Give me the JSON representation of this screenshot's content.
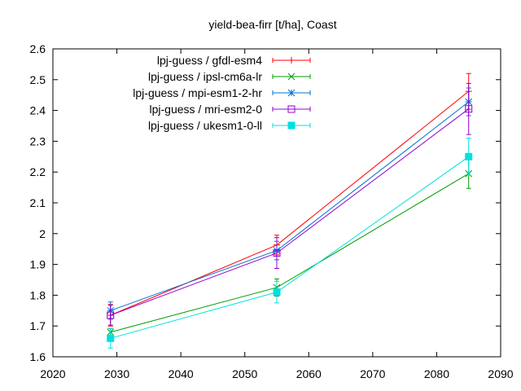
{
  "chart_data": {
    "type": "line",
    "title": "yield-bea-firr [t/ha], Coast",
    "xlabel": "",
    "ylabel": "",
    "xlim": [
      2020,
      2090
    ],
    "ylim": [
      1.6,
      2.6
    ],
    "x_ticks": [
      2020,
      2030,
      2040,
      2050,
      2060,
      2070,
      2080,
      2090
    ],
    "y_ticks": [
      1.6,
      1.7,
      1.8,
      1.9,
      2.0,
      2.1,
      2.2,
      2.3,
      2.4,
      2.5,
      2.6
    ],
    "x_tick_labels": [
      "2020",
      "2030",
      "2040",
      "2050",
      "2060",
      "2070",
      "2080",
      "2090"
    ],
    "y_tick_labels": [
      "1.6",
      "1.7",
      "1.8",
      "1.9",
      "2",
      "2.1",
      "2.2",
      "2.3",
      "2.4",
      "2.5",
      "2.6"
    ],
    "grid": false,
    "legend_position": "top-left",
    "x": [
      2029,
      2055,
      2085
    ],
    "series": [
      {
        "name": "lpj-guess / gfdl-esm4",
        "color": "#ff0000",
        "marker": "plus",
        "values": [
          1.735,
          1.963,
          2.462
        ],
        "err": [
          0.035,
          0.032,
          0.058
        ]
      },
      {
        "name": "lpj-guess / ipsl-cm6a-lr",
        "color": "#009e00",
        "marker": "cross",
        "values": [
          1.68,
          1.825,
          2.195
        ],
        "err": [
          0.012,
          0.028,
          0.048
        ]
      },
      {
        "name": "lpj-guess / mpi-esm1-2-hr",
        "color": "#0072d2",
        "marker": "star",
        "values": [
          1.75,
          1.945,
          2.428
        ],
        "err": [
          0.028,
          0.03,
          0.045
        ]
      },
      {
        "name": "lpj-guess / mri-esm2-0",
        "color": "#9400d3",
        "marker": "open-square",
        "values": [
          1.735,
          1.937,
          2.405
        ],
        "err": [
          0.032,
          0.05,
          0.083
        ]
      },
      {
        "name": "lpj-guess / ukesm1-0-ll",
        "color": "#00e0e0",
        "marker": "filled-square",
        "values": [
          1.66,
          1.81,
          2.25
        ],
        "err": [
          0.032,
          0.035,
          0.06
        ]
      }
    ]
  }
}
